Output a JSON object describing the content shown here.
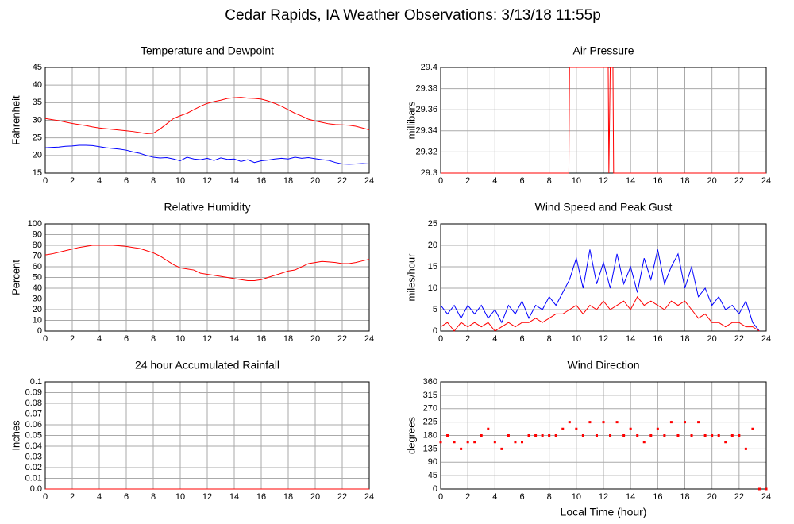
{
  "title": "Cedar Rapids, IA Weather Observations: 3/13/18 11:55p",
  "chart_data": [
    {
      "type": "line",
      "title": "Temperature and Dewpoint",
      "ylabel": "Fahrenheit",
      "x": [
        0,
        0.5,
        1,
        1.5,
        2,
        2.5,
        3,
        3.5,
        4,
        4.5,
        5,
        5.5,
        6,
        6.5,
        7,
        7.5,
        8,
        8.5,
        9,
        9.5,
        10,
        10.5,
        11,
        11.5,
        12,
        12.5,
        13,
        13.5,
        14,
        14.5,
        15,
        15.5,
        16,
        16.5,
        17,
        17.5,
        18,
        18.5,
        19,
        19.5,
        20,
        20.5,
        21,
        21.5,
        22,
        22.5,
        23,
        23.5,
        24
      ],
      "series": [
        {
          "color": "#ff0000",
          "values": [
            30.5,
            30.2,
            29.9,
            29.5,
            29.1,
            28.8,
            28.5,
            28.1,
            27.8,
            27.6,
            27.4,
            27.2,
            27.0,
            26.8,
            26.5,
            26.2,
            26.3,
            27.5,
            29,
            30.5,
            31.3,
            32,
            33,
            34,
            34.8,
            35.3,
            35.7,
            36.2,
            36.4,
            36.5,
            36.3,
            36.2,
            36.0,
            35.5,
            34.8,
            34,
            33,
            32,
            31.2,
            30.3,
            29.8,
            29.4,
            29.0,
            28.8,
            28.7,
            28.6,
            28.3,
            27.8,
            27.3
          ]
        },
        {
          "color": "#0000ff",
          "values": [
            22.2,
            22.3,
            22.4,
            22.6,
            22.7,
            22.9,
            22.9,
            22.8,
            22.5,
            22.2,
            22,
            21.8,
            21.5,
            21,
            20.6,
            20,
            19.5,
            19.3,
            19.4,
            19,
            18.5,
            19.5,
            19,
            18.8,
            19.2,
            18.6,
            19.3,
            18.9,
            19,
            18.3,
            18.8,
            18,
            18.5,
            18.7,
            19,
            19.2,
            19,
            19.5,
            19.2,
            19.4,
            19.1,
            18.8,
            18.6,
            18,
            17.6,
            17.5,
            17.6,
            17.7,
            17.6
          ]
        }
      ],
      "xlim": [
        0,
        24
      ],
      "ylim": [
        15,
        45
      ],
      "xticks": [
        0,
        2,
        4,
        6,
        8,
        10,
        12,
        14,
        16,
        18,
        20,
        22,
        24
      ],
      "yticks": [
        15,
        20,
        25,
        30,
        35,
        40,
        45
      ],
      "grid": true
    },
    {
      "type": "line",
      "title": "Air Pressure",
      "ylabel": "millibars",
      "x": [
        0,
        9.45,
        9.5,
        12.35,
        12.4,
        12.5,
        12.6,
        12.7,
        12.75,
        24
      ],
      "series": [
        {
          "color": "#ff0000",
          "values": [
            29.3,
            29.3,
            29.4,
            29.4,
            29.3,
            29.4,
            29.4,
            29.4,
            29.3,
            29.3
          ]
        }
      ],
      "xlim": [
        0,
        24
      ],
      "ylim": [
        29.3,
        29.4
      ],
      "xticks": [
        0,
        2,
        4,
        6,
        8,
        10,
        12,
        14,
        16,
        18,
        20,
        22,
        24
      ],
      "yticks": [
        29.3,
        29.32,
        29.34,
        29.36,
        29.38,
        29.4
      ],
      "grid": true
    },
    {
      "type": "line",
      "title": "Relative Humidity",
      "ylabel": "Percent",
      "x": [
        0,
        0.5,
        1,
        1.5,
        2,
        2.5,
        3,
        3.5,
        4,
        4.5,
        5,
        5.5,
        6,
        6.5,
        7,
        7.5,
        8,
        8.5,
        9,
        9.5,
        10,
        10.5,
        11,
        11.5,
        12,
        12.5,
        13,
        13.5,
        14,
        14.5,
        15,
        15.5,
        16,
        16.5,
        17,
        17.5,
        18,
        18.5,
        19,
        19.5,
        20,
        20.5,
        21,
        21.5,
        22,
        22.5,
        23,
        23.5,
        24
      ],
      "series": [
        {
          "color": "#ff0000",
          "values": [
            71,
            72,
            73.5,
            75,
            76.5,
            78,
            79,
            80,
            80,
            80,
            80,
            79.5,
            79,
            78,
            77,
            75,
            73,
            70,
            66,
            62,
            59,
            58,
            57,
            54,
            53,
            52,
            51,
            50,
            49,
            48,
            47,
            47,
            48,
            50,
            52,
            54,
            56,
            57,
            60,
            63,
            64,
            65,
            64.5,
            64,
            63,
            63,
            64,
            65.5,
            67
          ]
        }
      ],
      "xlim": [
        0,
        24
      ],
      "ylim": [
        0,
        100
      ],
      "xticks": [
        0,
        2,
        4,
        6,
        8,
        10,
        12,
        14,
        16,
        18,
        20,
        22,
        24
      ],
      "yticks": [
        0,
        10,
        20,
        30,
        40,
        50,
        60,
        70,
        80,
        90,
        100
      ],
      "grid": true
    },
    {
      "type": "line",
      "title": "Wind Speed and Peak Gust",
      "ylabel": "miles/hour",
      "x": [
        0,
        0.5,
        1,
        1.5,
        2,
        2.5,
        3,
        3.5,
        4,
        4.5,
        5,
        5.5,
        6,
        6.5,
        7,
        7.5,
        8,
        8.5,
        9,
        9.5,
        10,
        10.5,
        11,
        11.5,
        12,
        12.5,
        13,
        13.5,
        14,
        14.5,
        15,
        15.5,
        16,
        16.5,
        17,
        17.5,
        18,
        18.5,
        19,
        19.5,
        20,
        20.5,
        21,
        21.5,
        22,
        22.5,
        23,
        23.5,
        24
      ],
      "series": [
        {
          "color": "#0000ff",
          "values": [
            6,
            4,
            6,
            3,
            6,
            4,
            6,
            3,
            5,
            2,
            6,
            4,
            7,
            3,
            6,
            5,
            8,
            6,
            9,
            12,
            17,
            10,
            19,
            11,
            16,
            10,
            18,
            11,
            15,
            9,
            17,
            12,
            19,
            11,
            15,
            18,
            10,
            15,
            8,
            10,
            6,
            8,
            5,
            6,
            4,
            7,
            2,
            0,
            null
          ]
        },
        {
          "color": "#ff0000",
          "values": [
            1,
            2,
            0,
            2,
            1,
            2,
            1,
            2,
            0,
            1,
            2,
            1,
            2,
            2,
            3,
            2,
            3,
            4,
            4,
            5,
            6,
            4,
            6,
            5,
            7,
            5,
            6,
            7,
            5,
            8,
            6,
            7,
            6,
            5,
            7,
            6,
            7,
            5,
            3,
            4,
            2,
            2,
            1,
            2,
            2,
            1,
            1,
            0,
            null
          ]
        }
      ],
      "xlim": [
        0,
        24
      ],
      "ylim": [
        0,
        25
      ],
      "xticks": [
        0,
        2,
        4,
        6,
        8,
        10,
        12,
        14,
        16,
        18,
        20,
        22,
        24
      ],
      "yticks": [
        0,
        5,
        10,
        15,
        20,
        25
      ],
      "grid": true
    },
    {
      "type": "line",
      "title": "24 hour Accumulated Rainfall",
      "ylabel": "Inches",
      "x": [
        0,
        24
      ],
      "series": [
        {
          "color": "#ff0000",
          "values": [
            0,
            0
          ]
        }
      ],
      "xlim": [
        0,
        24
      ],
      "ylim": [
        0,
        0.1
      ],
      "xticks": [
        0,
        2,
        4,
        6,
        8,
        10,
        12,
        14,
        16,
        18,
        20,
        22,
        24
      ],
      "yticks": [
        {
          "value": 0,
          "label": "0.0"
        },
        0.01,
        0.02,
        0.03,
        0.04,
        0.05,
        0.06,
        0.07,
        0.08,
        0.09,
        0.1
      ],
      "grid": true
    },
    {
      "type": "scatter",
      "title": "Wind Direction",
      "ylabel": "degrees",
      "xlabel": "Local Time (hour)",
      "x": [
        0,
        0.5,
        1,
        1.5,
        2,
        2.5,
        3,
        3.5,
        4,
        4.5,
        5,
        5.5,
        6,
        6.5,
        7,
        7.5,
        8,
        8.5,
        9,
        9.5,
        10,
        10.5,
        11,
        11.5,
        12,
        12.5,
        13,
        13.5,
        14,
        14.5,
        15,
        15.5,
        16,
        16.5,
        17,
        17.5,
        18,
        18.5,
        19,
        19.5,
        20,
        20.5,
        21,
        21.5,
        22,
        22.5,
        23,
        23.5,
        24
      ],
      "series": [
        {
          "color": "#ff0000",
          "values": [
            158,
            180,
            158,
            135,
            158,
            158,
            180,
            202,
            158,
            135,
            180,
            158,
            158,
            180,
            180,
            180,
            180,
            180,
            202,
            225,
            202,
            180,
            225,
            180,
            225,
            180,
            225,
            180,
            202,
            180,
            158,
            180,
            202,
            180,
            225,
            180,
            225,
            180,
            225,
            180,
            180,
            180,
            158,
            180,
            180,
            135,
            202,
            0,
            0
          ]
        }
      ],
      "xlim": [
        0,
        24
      ],
      "ylim": [
        0,
        360
      ],
      "xticks": [
        0,
        2,
        4,
        6,
        8,
        10,
        12,
        14,
        16,
        18,
        20,
        22,
        24
      ],
      "yticks": [
        0,
        45,
        90,
        135,
        180,
        225,
        270,
        315,
        360
      ],
      "grid": true
    }
  ]
}
